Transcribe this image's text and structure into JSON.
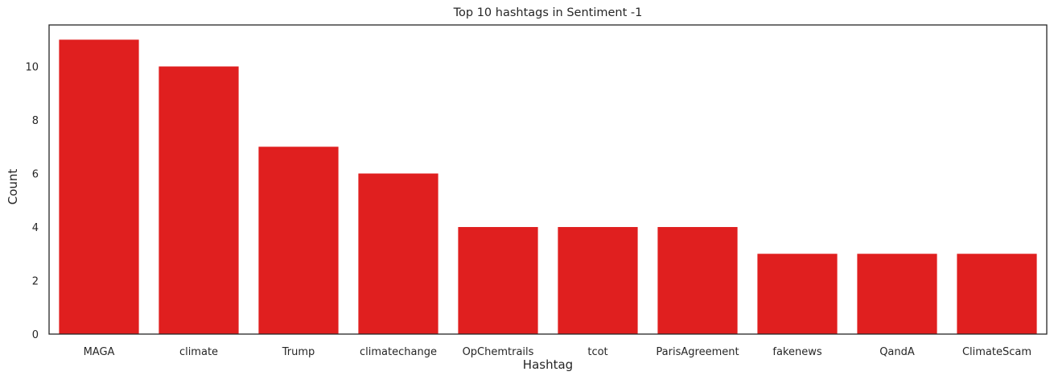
{
  "chart_data": {
    "type": "bar",
    "title": "Top 10 hashtags in Sentiment -1",
    "xlabel": "Hashtag",
    "ylabel": "Count",
    "categories": [
      "MAGA",
      "climate",
      "Trump",
      "climatechange",
      "OpChemtrails",
      "tcot",
      "ParisAgreement",
      "fakenews",
      "QandA",
      "ClimateScam"
    ],
    "values": [
      11,
      10,
      7,
      6,
      4,
      4,
      4,
      3,
      3,
      3
    ],
    "ylim": [
      0,
      11.55
    ],
    "yticks": [
      0,
      2,
      4,
      6,
      8,
      10
    ],
    "grid": false,
    "bar_color": "#e01f1f"
  }
}
